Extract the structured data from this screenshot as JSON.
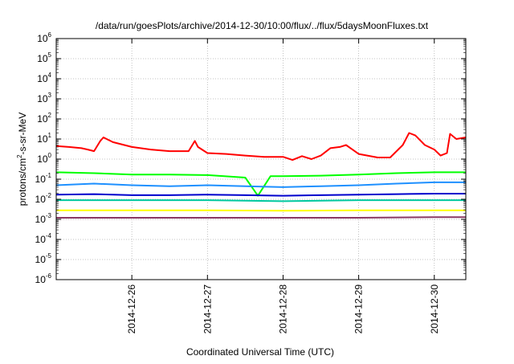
{
  "chart_data": {
    "type": "line",
    "title": "/data/run/goesPlots/archive/2014-12-30/10:00/flux/../flux/5daysMoonFluxes.txt",
    "xlabel": "Coordinated Universal Time (UTC)",
    "ylabel": {
      "base": "protons/cm",
      "sup": "2",
      "rest": "-s-sr-MeV"
    },
    "yscale": "log",
    "ylim": [
      1e-06,
      1000000.0
    ],
    "xlim": [
      "2014-12-25T00:00",
      "2014-12-30T10:00"
    ],
    "grid": true,
    "ytick_exponents": [
      "-6",
      "-5",
      "-4",
      "-3",
      "-2",
      "-1",
      "0",
      "1",
      "2",
      "3",
      "4",
      "5",
      "6"
    ],
    "x_ticks": [
      {
        "label": "2014-12-26",
        "t": "2014-12-26T00:00"
      },
      {
        "label": "2014-12-27",
        "t": "2014-12-27T00:00"
      },
      {
        "label": "2014-12-28",
        "t": "2014-12-28T00:00"
      },
      {
        "label": "2014-12-29",
        "t": "2014-12-29T00:00"
      },
      {
        "label": "2014-12-30",
        "t": "2014-12-30T00:00"
      }
    ],
    "series": [
      {
        "color": "#ff0000",
        "points": [
          [
            "2014-12-25T00:00",
            4.5
          ],
          [
            "2014-12-25T04:00",
            4.0
          ],
          [
            "2014-12-25T08:00",
            3.5
          ],
          [
            "2014-12-25T10:00",
            3.0
          ],
          [
            "2014-12-25T12:00",
            2.5
          ],
          [
            "2014-12-25T14:00",
            8.0
          ],
          [
            "2014-12-25T15:00",
            12.0
          ],
          [
            "2014-12-25T18:00",
            7.0
          ],
          [
            "2014-12-26T00:00",
            4.0
          ],
          [
            "2014-12-26T06:00",
            3.0
          ],
          [
            "2014-12-26T12:00",
            2.5
          ],
          [
            "2014-12-26T18:00",
            2.5
          ],
          [
            "2014-12-26T20:00",
            8.0
          ],
          [
            "2014-12-26T21:00",
            4.0
          ],
          [
            "2014-12-27T00:00",
            2.0
          ],
          [
            "2014-12-27T06:00",
            1.8
          ],
          [
            "2014-12-27T12:00",
            1.5
          ],
          [
            "2014-12-27T18:00",
            1.3
          ],
          [
            "2014-12-28T00:00",
            1.3
          ],
          [
            "2014-12-28T03:00",
            0.9
          ],
          [
            "2014-12-28T06:00",
            1.4
          ],
          [
            "2014-12-28T09:00",
            1.0
          ],
          [
            "2014-12-28T12:00",
            1.5
          ],
          [
            "2014-12-28T15:00",
            3.5
          ],
          [
            "2014-12-28T18:00",
            4.0
          ],
          [
            "2014-12-28T20:00",
            5.0
          ],
          [
            "2014-12-28T22:00",
            3.0
          ],
          [
            "2014-12-29T00:00",
            1.8
          ],
          [
            "2014-12-29T06:00",
            1.2
          ],
          [
            "2014-12-29T10:00",
            1.2
          ],
          [
            "2014-12-29T14:00",
            5.0
          ],
          [
            "2014-12-29T16:00",
            20.0
          ],
          [
            "2014-12-29T18:00",
            15.0
          ],
          [
            "2014-12-29T21:00",
            5.0
          ],
          [
            "2014-12-30T00:00",
            3.0
          ],
          [
            "2014-12-30T02:00",
            1.5
          ],
          [
            "2014-12-30T04:00",
            2.0
          ],
          [
            "2014-12-30T05:00",
            18.0
          ],
          [
            "2014-12-30T07:00",
            10.0
          ],
          [
            "2014-12-30T10:00",
            12.0
          ]
        ]
      },
      {
        "color": "#00ff00",
        "points": [
          [
            "2014-12-25T00:00",
            0.22
          ],
          [
            "2014-12-25T12:00",
            0.2
          ],
          [
            "2014-12-26T00:00",
            0.17
          ],
          [
            "2014-12-26T12:00",
            0.17
          ],
          [
            "2014-12-27T00:00",
            0.16
          ],
          [
            "2014-12-27T12:00",
            0.12
          ],
          [
            "2014-12-27T16:00",
            0.015
          ],
          [
            "2014-12-27T20:00",
            0.14
          ],
          [
            "2014-12-28T00:00",
            0.14
          ],
          [
            "2014-12-28T12:00",
            0.15
          ],
          [
            "2014-12-29T00:00",
            0.17
          ],
          [
            "2014-12-29T12:00",
            0.2
          ],
          [
            "2014-12-30T00:00",
            0.22
          ],
          [
            "2014-12-30T10:00",
            0.22
          ]
        ]
      },
      {
        "color": "#1e90ff",
        "points": [
          [
            "2014-12-25T00:00",
            0.05
          ],
          [
            "2014-12-25T12:00",
            0.06
          ],
          [
            "2014-12-26T00:00",
            0.05
          ],
          [
            "2014-12-26T12:00",
            0.045
          ],
          [
            "2014-12-27T00:00",
            0.05
          ],
          [
            "2014-12-27T12:00",
            0.045
          ],
          [
            "2014-12-28T00:00",
            0.04
          ],
          [
            "2014-12-28T12:00",
            0.045
          ],
          [
            "2014-12-29T00:00",
            0.05
          ],
          [
            "2014-12-29T12:00",
            0.06
          ],
          [
            "2014-12-30T00:00",
            0.07
          ],
          [
            "2014-12-30T10:00",
            0.07
          ]
        ]
      },
      {
        "color": "#0000cd",
        "points": [
          [
            "2014-12-25T00:00",
            0.017
          ],
          [
            "2014-12-25T12:00",
            0.018
          ],
          [
            "2014-12-26T00:00",
            0.016
          ],
          [
            "2014-12-26T12:00",
            0.016
          ],
          [
            "2014-12-27T00:00",
            0.017
          ],
          [
            "2014-12-27T12:00",
            0.016
          ],
          [
            "2014-12-28T00:00",
            0.015
          ],
          [
            "2014-12-28T12:00",
            0.016
          ],
          [
            "2014-12-29T00:00",
            0.017
          ],
          [
            "2014-12-29T12:00",
            0.018
          ],
          [
            "2014-12-30T00:00",
            0.019
          ],
          [
            "2014-12-30T10:00",
            0.019
          ]
        ]
      },
      {
        "color": "#00c8a0",
        "points": [
          [
            "2014-12-25T00:00",
            0.009
          ],
          [
            "2014-12-26T00:00",
            0.009
          ],
          [
            "2014-12-27T00:00",
            0.009
          ],
          [
            "2014-12-28T00:00",
            0.008
          ],
          [
            "2014-12-29T00:00",
            0.009
          ],
          [
            "2014-12-30T00:00",
            0.009
          ],
          [
            "2014-12-30T10:00",
            0.009
          ]
        ]
      },
      {
        "color": "#ffff00",
        "points": [
          [
            "2014-12-25T00:00",
            0.0028
          ],
          [
            "2014-12-26T00:00",
            0.0028
          ],
          [
            "2014-12-27T00:00",
            0.0028
          ],
          [
            "2014-12-28T00:00",
            0.0027
          ],
          [
            "2014-12-29T00:00",
            0.0028
          ],
          [
            "2014-12-30T00:00",
            0.0028
          ],
          [
            "2014-12-30T10:00",
            0.0028
          ]
        ]
      },
      {
        "color": "#8b3a62",
        "points": [
          [
            "2014-12-25T00:00",
            0.0012
          ],
          [
            "2014-12-26T00:00",
            0.0012
          ],
          [
            "2014-12-27T00:00",
            0.0012
          ],
          [
            "2014-12-28T00:00",
            0.0012
          ],
          [
            "2014-12-29T00:00",
            0.0012
          ],
          [
            "2014-12-30T00:00",
            0.0013
          ],
          [
            "2014-12-30T10:00",
            0.0013
          ]
        ]
      }
    ]
  }
}
